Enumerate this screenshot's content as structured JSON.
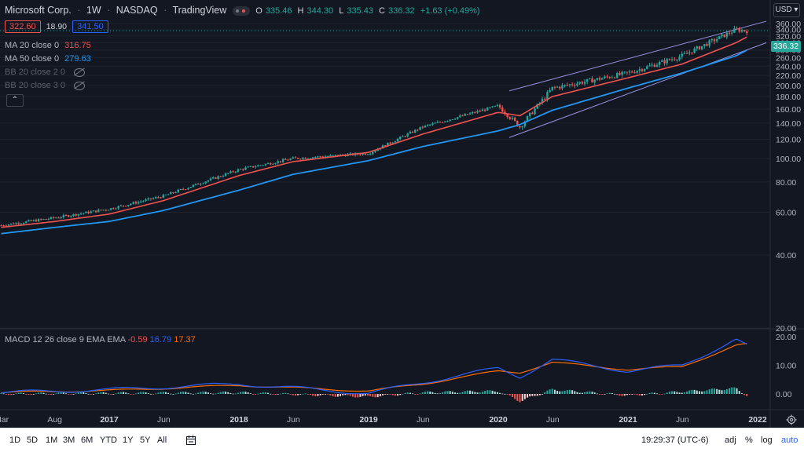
{
  "header": {
    "symbol": "Microsoft Corp.",
    "interval": "1W",
    "exchange": "NASDAQ",
    "provider": "TradingView",
    "ohlc": {
      "o_label": "O",
      "o_value": "335.46",
      "h_label": "H",
      "h_value": "344.30",
      "l_label": "L",
      "l_value": "335.43",
      "c_label": "C",
      "c_value": "336.32",
      "change": "+1.63 (+0.49%)"
    },
    "sell_price": "322.60",
    "spread": "18.90",
    "buy_price": "341.50",
    "currency": "USD",
    "last_price": "336.32"
  },
  "indicators": [
    {
      "label": "MA 20 close 0",
      "value": "316.75",
      "color": "#ef5350"
    },
    {
      "label": "MA 50 close 0",
      "value": "279.63",
      "color": "#2196f3"
    },
    {
      "label": "BB 20 close 2 0",
      "value": "",
      "color": "#787b86"
    },
    {
      "label": "BB 20 close 3 0",
      "value": "",
      "color": "#787b86"
    }
  ],
  "macd_legend": {
    "label": "MACD 12 26 close 9 EMA EMA",
    "hist": "-0.59",
    "hist_color": "#ef5350",
    "macd": "16.79",
    "macd_color": "#2962ff",
    "signal": "17.37",
    "signal_color": "#ff6d00"
  },
  "price_axis": [
    "360.00",
    "340.00",
    "320.00",
    "300.00",
    "280.00",
    "260.00",
    "240.00",
    "220.00",
    "200.00",
    "180.00",
    "160.00",
    "140.00",
    "120.00",
    "100.00",
    "80.00",
    "60.00",
    "40.00",
    "20.00"
  ],
  "macd_axis": [
    "20.00",
    "10.00",
    "0.00"
  ],
  "time_axis": [
    "Mar",
    "Aug",
    "2017",
    "Jun",
    "2018",
    "Jun",
    "2019",
    "Jun",
    "2020",
    "Jun",
    "2021",
    "Jun",
    "2022"
  ],
  "toolbar": {
    "timeframes": [
      "1D",
      "5D",
      "1M",
      "3M",
      "6M",
      "YTD",
      "1Y",
      "5Y",
      "All"
    ],
    "clock": "19:29:37 (UTC-6)",
    "adj": "adj",
    "percent": "%",
    "log": "log",
    "auto": "auto"
  },
  "colors": {
    "up": "#26a69a",
    "down": "#ef5350",
    "ma20": "#ef5350",
    "ma50": "#2196f3",
    "channel": "#9c8fe0"
  },
  "chart_data": {
    "type": "line",
    "title": "Microsoft Corp. 1W NASDAQ",
    "y_scale": "log",
    "ylim": [
      20,
      360
    ],
    "x": [
      "2016-03",
      "2016-08",
      "2017-01",
      "2017-06",
      "2018-01",
      "2018-06",
      "2019-01",
      "2019-06",
      "2020-01",
      "2020-03",
      "2020-06",
      "2021-01",
      "2021-06",
      "2021-11",
      "2021-12"
    ],
    "series": [
      {
        "name": "Price",
        "values": [
          53,
          57,
          62,
          70,
          90,
          100,
          105,
          135,
          165,
          135,
          195,
          225,
          265,
          340,
          336.32
        ]
      },
      {
        "name": "MA 20 close 0",
        "values": [
          52,
          55,
          59,
          67,
          85,
          97,
          106,
          126,
          155,
          150,
          180,
          215,
          245,
          300,
          316.75
        ]
      },
      {
        "name": "MA 50 close 0",
        "values": [
          49,
          52,
          55,
          61,
          74,
          86,
          98,
          112,
          130,
          138,
          158,
          195,
          225,
          265,
          279.63
        ]
      }
    ],
    "macd": {
      "x": [
        "2016-03",
        "2017-01",
        "2018-01",
        "2019-01",
        "2019-06",
        "2020-01",
        "2020-03",
        "2020-06",
        "2021-01",
        "2021-06",
        "2021-11",
        "2021-12"
      ],
      "macd": [
        0.5,
        1.5,
        3.5,
        0.2,
        4,
        9,
        6,
        12,
        8,
        10,
        19,
        16.79
      ],
      "signal": [
        0.5,
        1.2,
        3,
        1,
        3.5,
        8,
        7.5,
        11,
        8.5,
        9.5,
        17,
        17.37
      ],
      "hist": [
        0,
        0.3,
        0.5,
        -1,
        0.5,
        1,
        -2.5,
        1.5,
        -0.5,
        0.8,
        2,
        -0.59
      ]
    }
  }
}
